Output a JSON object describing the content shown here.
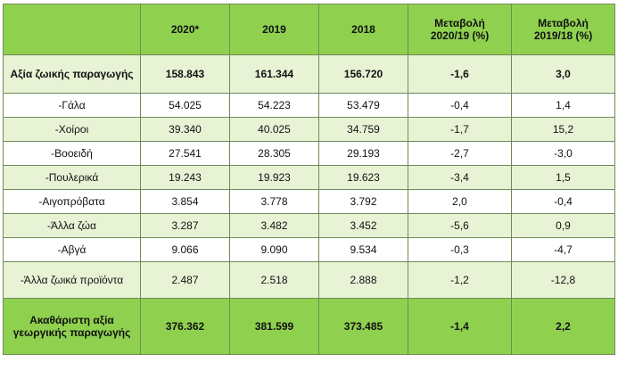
{
  "table": {
    "headers": [
      "",
      "2020*",
      "2019",
      "2018",
      "Μεταβολή\n2020/19 (%)",
      "Μεταβολή\n2019/18 (%)"
    ],
    "rows": [
      [
        "Αξία ζωικής παραγωγής",
        "158.843",
        "161.344",
        "156.720",
        "-1,6",
        "3,0"
      ],
      [
        "-Γάλα",
        "54.025",
        "54.223",
        "53.479",
        "-0,4",
        "1,4"
      ],
      [
        "-Χοίροι",
        "39.340",
        "40.025",
        "34.759",
        "-1,7",
        "15,2"
      ],
      [
        "-Βοοειδή",
        "27.541",
        "28.305",
        "29.193",
        "-2,7",
        "-3,0"
      ],
      [
        "-Πουλερικά",
        "19.243",
        "19.923",
        "19.623",
        "-3,4",
        "1,5"
      ],
      [
        "-Αιγοπρόβατα",
        "3.854",
        "3.778",
        "3.792",
        "2,0",
        "-0,4"
      ],
      [
        "-Άλλα ζώα",
        "3.287",
        "3.482",
        "3.452",
        "-5,6",
        "0,9"
      ],
      [
        "-Αβγά",
        "9.066",
        "9.090",
        "9.534",
        "-0,3",
        "-4,7"
      ],
      [
        "-Άλλα ζωικά προϊόντα",
        "2.487",
        "2.518",
        "2.888",
        "-1,2",
        "-12,8"
      ],
      [
        "Ακαθάριστη αξία γεωργικής παραγωγής",
        "376.362",
        "381.599",
        "373.485",
        "-1,4",
        "2,2"
      ]
    ]
  },
  "colors": {
    "header_green": "#8fd14f",
    "light_green": "#e8f3d6",
    "border": "#6f8a56"
  }
}
